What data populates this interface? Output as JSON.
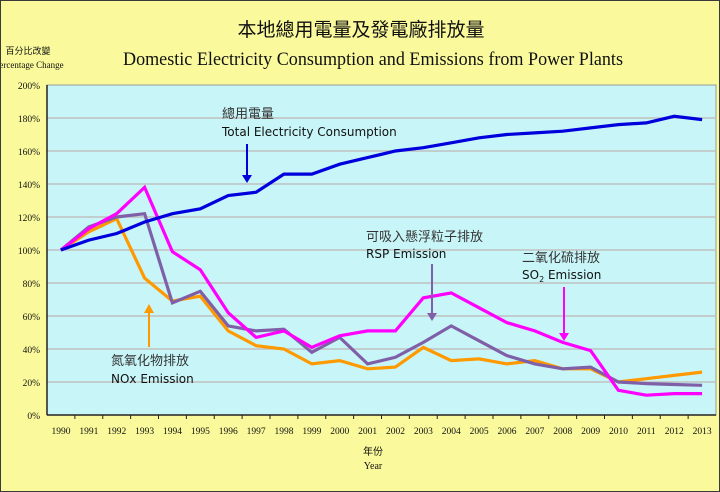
{
  "chart_data": {
    "type": "line",
    "title_zh": "本地總用電量及發電廠排放量",
    "title": "Domestic Electricity Consumption and Emissions from Power Plants",
    "ylabel_zh": "百分比改變",
    "ylabel": "Percentage Change",
    "xlabel_zh": "年份",
    "xlabel": "Year",
    "ylim": [
      0,
      200
    ],
    "yticks": [
      "0%",
      "20%",
      "40%",
      "60%",
      "80%",
      "100%",
      "120%",
      "140%",
      "160%",
      "180%",
      "200%"
    ],
    "ytick_values": [
      0,
      20,
      40,
      60,
      80,
      100,
      120,
      140,
      160,
      180,
      200
    ],
    "grid": true,
    "categories": [
      "1990",
      "1991",
      "1992",
      "1993",
      "1994",
      "1995",
      "1996",
      "1997",
      "1998",
      "1999",
      "2000",
      "2001",
      "2002",
      "2003",
      "2004",
      "2005",
      "2006",
      "2007",
      "2008",
      "2009",
      "2010",
      "2011",
      "2012",
      "2013"
    ],
    "series": [
      {
        "key": "nox",
        "name": "NOx Emission",
        "name_zh": "氮氧化物排放",
        "color": "#ff9900",
        "values": [
          100,
          111,
          119,
          83,
          69,
          72,
          51,
          42,
          40,
          31,
          33,
          28,
          29,
          41,
          33,
          34,
          31,
          33,
          28,
          28,
          20,
          22,
          24,
          26
        ]
      },
      {
        "key": "rsp",
        "name": "RSP Emission",
        "name_zh": "可吸入懸浮粒子排放",
        "color": "#7f60a8",
        "values": [
          100,
          114,
          120,
          122,
          68,
          75,
          54,
          51,
          52,
          38,
          47,
          31,
          35,
          44,
          54,
          45,
          36,
          31,
          28,
          29,
          20,
          19,
          18.5,
          18
        ]
      },
      {
        "key": "so2",
        "name": "SO₂ Emission",
        "name_zh": "二氧化硫排放",
        "color": "#ff00ff",
        "values": [
          100,
          113,
          122,
          138,
          99,
          88,
          62,
          47,
          51,
          41,
          48,
          51,
          51,
          71,
          74,
          65,
          56,
          51,
          44,
          39,
          15,
          12,
          13,
          13
        ]
      },
      {
        "key": "elec",
        "name": "Total Electricity Consumption",
        "name_zh": "總用電量",
        "color": "#0000dd",
        "values": [
          100,
          106,
          110,
          117,
          122,
          125,
          133,
          135,
          146,
          146,
          152,
          156,
          160,
          162,
          165,
          168,
          170,
          171,
          172,
          174,
          176,
          177,
          181,
          179
        ]
      }
    ],
    "annotations": [
      {
        "series": "elec",
        "zh": "總用電量",
        "en": "Total Electricity Consumption"
      },
      {
        "series": "rsp",
        "zh": "可吸入懸浮粒子排放",
        "en": "RSP Emission"
      },
      {
        "series": "so2",
        "zh": "二氧化硫排放",
        "en_main": "SO",
        "en_sub": "2",
        "en_rest": " Emission"
      },
      {
        "series": "nox",
        "zh": "氮氧化物排放",
        "en": "NOx Emission"
      }
    ]
  },
  "colors": {
    "background": "#fafa9c",
    "plot_background": "#c8f6f8",
    "gridline": "#c0c0c0"
  }
}
